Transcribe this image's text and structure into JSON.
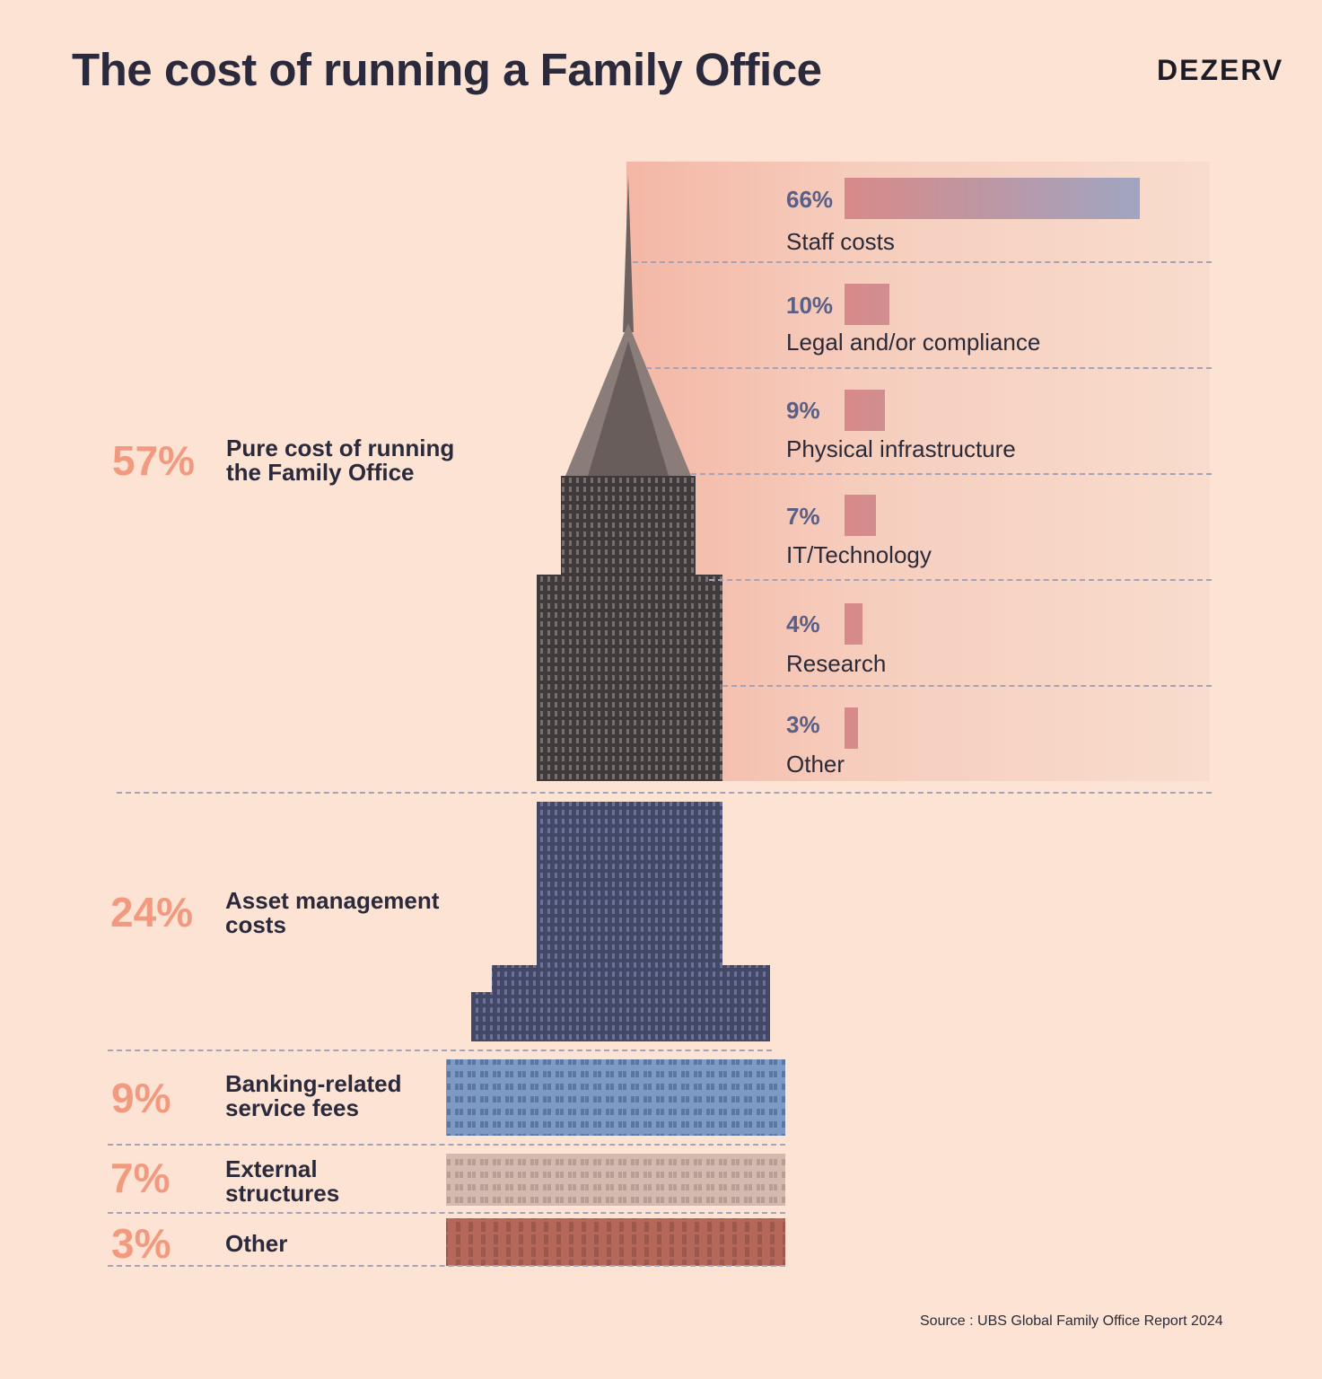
{
  "header": {
    "title": "The cost of running a Family Office",
    "logo": "DEZERV"
  },
  "chart_data": {
    "type": "bar",
    "title": "The cost of running a Family Office",
    "main_breakdown": {
      "categories": [
        "Pure cost of running the Family Office",
        "Asset management costs",
        "Banking-related service fees",
        "External structures",
        "Other"
      ],
      "values": [
        57,
        24,
        9,
        7,
        3
      ],
      "labels": [
        "57%",
        "24%",
        "9%",
        "7%",
        "3%"
      ],
      "label_lines": [
        [
          "Pure cost of running",
          "the Family Office"
        ],
        [
          "Asset management",
          "costs"
        ],
        [
          "Banking-related",
          "service fees"
        ],
        [
          "External",
          "structures"
        ],
        [
          "Other"
        ]
      ]
    },
    "pure_cost_breakdown": {
      "categories": [
        "Staff costs",
        "Legal and/or compliance",
        "Physical infrastructure",
        "IT/Technology",
        "Research",
        "Other"
      ],
      "values": [
        66,
        10,
        9,
        7,
        4,
        3
      ],
      "labels": [
        "66%",
        "10%",
        "9%",
        "7%",
        "4%",
        "3%"
      ]
    },
    "colors": {
      "bar_start": "#d88a88",
      "bar_end": "#a0a5c2",
      "percent_left": "#f29a7f",
      "percent_right": "#5a5f86"
    }
  },
  "footer": {
    "source": "Source : UBS Global Family Office Report 2024"
  }
}
